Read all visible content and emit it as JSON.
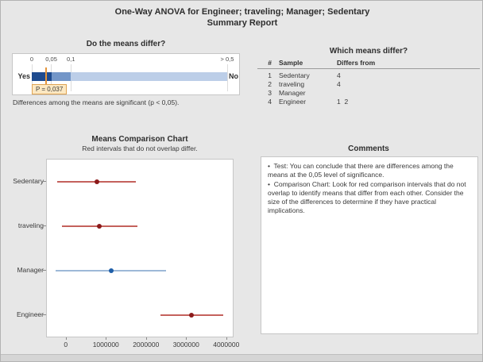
{
  "title": {
    "line1": "One-Way ANOVA for Engineer; traveling; Manager; Sedentary",
    "line2": "Summary Report"
  },
  "chart_data": [
    {
      "id": "p-value-gauge",
      "type": "bar",
      "title": "Do the means differ?",
      "left_label": "Yes",
      "right_label": "No",
      "p_value": 0.037,
      "annotation": "P = 0,037",
      "caption": "Differences among the means are significant (p < 0,05).",
      "xlim": [
        0,
        0.5
      ],
      "axis_ticks": [
        {
          "value": 0,
          "label": "0"
        },
        {
          "value": 0.05,
          "label": "0,05"
        },
        {
          "value": 0.1,
          "label": "0,1"
        },
        {
          "value": 0.5,
          "label": "> 0,5"
        }
      ],
      "segments": [
        {
          "from": 0,
          "to": 0.05,
          "color": "#1E4B8F"
        },
        {
          "from": 0.05,
          "to": 0.1,
          "color": "#7396C8"
        },
        {
          "from": 0.1,
          "to": 0.5,
          "color": "#BCCEE8"
        }
      ],
      "marker_color": "#E5953B",
      "p_box": {
        "bg": "#FCE8C2",
        "border": "#DFA353"
      }
    },
    {
      "id": "means-comparison",
      "type": "scatter",
      "title": "Means Comparison Chart",
      "subtitle": "Red intervals that do not overlap differ.",
      "categories": [
        "Sedentary",
        "traveling",
        "Manager",
        "Engineer"
      ],
      "points": [
        {
          "category": "Sedentary",
          "low": -220000,
          "center": 775000,
          "high": 1750000,
          "color": "red"
        },
        {
          "category": "traveling",
          "low": -90000,
          "center": 840000,
          "high": 1780000,
          "color": "red"
        },
        {
          "category": "Manager",
          "low": -260000,
          "center": 1140000,
          "high": 2500000,
          "color": "blue"
        },
        {
          "category": "Engineer",
          "low": 2370000,
          "center": 3140000,
          "high": 3920000,
          "color": "red"
        }
      ],
      "x_ticks": [
        {
          "value": 0,
          "label": "0"
        },
        {
          "value": 1000000,
          "label": "1000000"
        },
        {
          "value": 2000000,
          "label": "2000000"
        },
        {
          "value": 3000000,
          "label": "3000000"
        },
        {
          "value": 4000000,
          "label": "4000000"
        }
      ],
      "xlim": [
        -470000,
        4163000
      ],
      "colors": {
        "red_line": "#C4615C",
        "red_dot": "#8B1A1A",
        "blue_line": "#9DB9D8",
        "blue_dot": "#1E5EA8"
      }
    }
  ],
  "diff_table": {
    "header": "Which means differ?",
    "columns": [
      "#",
      "Sample",
      "Differs from"
    ],
    "rows": [
      {
        "num": "1",
        "sample": "Sedentary",
        "differs": "4"
      },
      {
        "num": "2",
        "sample": "traveling",
        "differs": "4"
      },
      {
        "num": "3",
        "sample": "Manager",
        "differs": ""
      },
      {
        "num": "4",
        "sample": "Engineer",
        "differs": "1  2"
      }
    ]
  },
  "comments": {
    "header": "Comments",
    "bullet_char": "•",
    "bullets": [
      "Test: You can conclude that there are differences among the means at the 0,05 level of significance.",
      "Comparison Chart: Look for red comparison intervals that do not overlap to identify means that differ from each other. Consider the size of the differences to determine if they have practical implications."
    ]
  }
}
